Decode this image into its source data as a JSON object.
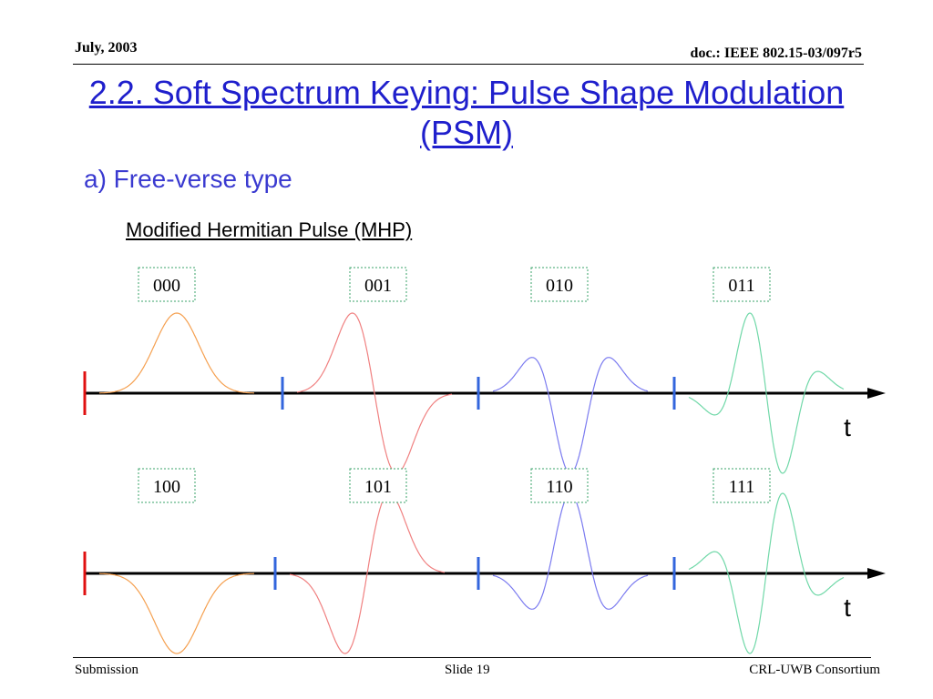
{
  "header": {
    "date": "July, 2003",
    "doc": "doc.: IEEE 802.15-03/097r5"
  },
  "title": "2.2. Soft Spectrum Keying: Pulse Shape Modulation (PSM)",
  "subtitle": "a) Free-verse type",
  "pulse_name": "Modified Hermitian Pulse (MHP)",
  "rows": [
    {
      "axis_label": "t",
      "symbols": [
        {
          "code": "000",
          "color": "#f5a050",
          "shape": "gauss",
          "sign": 1
        },
        {
          "code": "001",
          "color": "#f08080",
          "shape": "first-derivative",
          "sign": 1
        },
        {
          "code": "010",
          "color": "#7b7bf0",
          "shape": "second-derivative",
          "sign": -1
        },
        {
          "code": "011",
          "color": "#70d8a8",
          "shape": "third-derivative",
          "sign": 1
        }
      ]
    },
    {
      "axis_label": "t",
      "symbols": [
        {
          "code": "100",
          "color": "#f5a050",
          "shape": "gauss",
          "sign": -1
        },
        {
          "code": "101",
          "color": "#f08080",
          "shape": "first-derivative",
          "sign": -1
        },
        {
          "code": "110",
          "color": "#7b7bf0",
          "shape": "second-derivative",
          "sign": 1
        },
        {
          "code": "111",
          "color": "#70d8a8",
          "shape": "third-derivative",
          "sign": -1
        }
      ]
    }
  ],
  "colors": {
    "axis": "#000000",
    "start_marker": "#e01010",
    "boundary_marker": "#3366dd",
    "label_border": "#3aa36a",
    "title": "#1f1fcc"
  },
  "footer": {
    "left": "Submission",
    "center": "Slide 19",
    "right": "CRL-UWB Consortium"
  }
}
